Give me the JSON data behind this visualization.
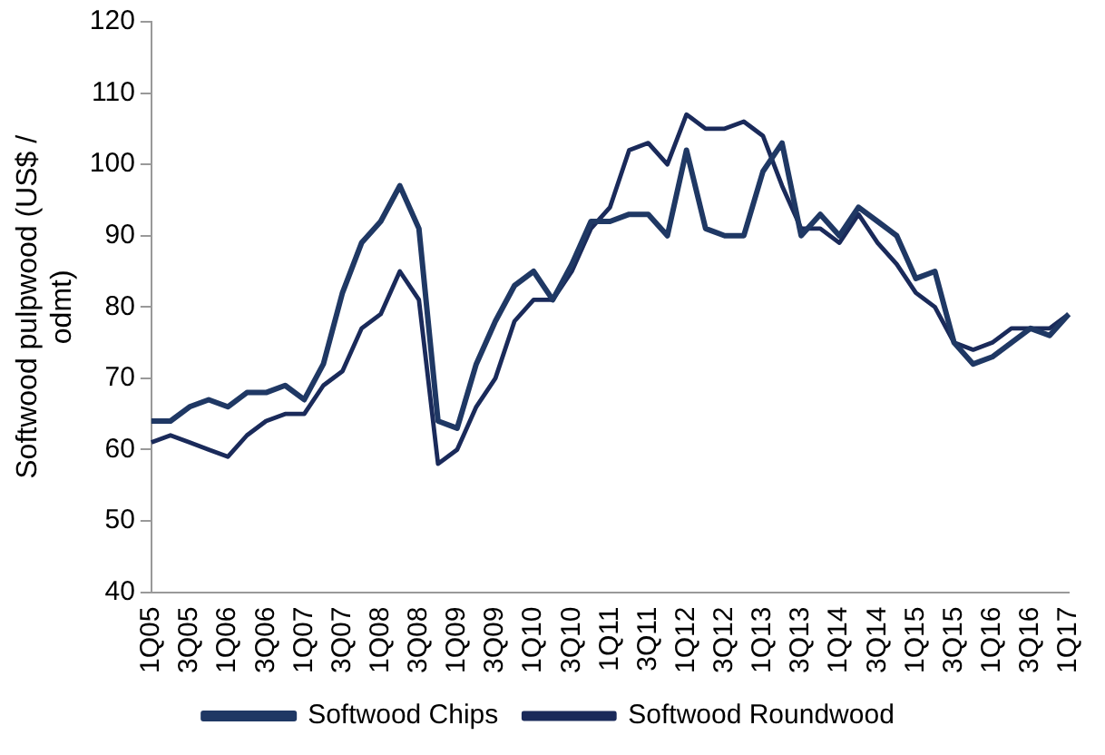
{
  "chart_data": {
    "type": "line",
    "ylabel": "Softwood pulpwood (US$ / odmt)",
    "categories": [
      "1Q05",
      null,
      "3Q05",
      null,
      "1Q06",
      null,
      "3Q06",
      null,
      "1Q07",
      null,
      "3Q07",
      null,
      "1Q08",
      null,
      "3Q08",
      null,
      "1Q09",
      null,
      "3Q09",
      null,
      "1Q10",
      null,
      "3Q10",
      null,
      "1Q11",
      null,
      "3Q11",
      null,
      "1Q12",
      null,
      "3Q12",
      null,
      "1Q13",
      null,
      "3Q13",
      null,
      "1Q14",
      null,
      "3Q14",
      null,
      "1Q15",
      null,
      "3Q15",
      null,
      "1Q16",
      null,
      "3Q16",
      null,
      "1Q17"
    ],
    "series": [
      {
        "name": "Softwood Chips",
        "color": "#1f3864",
        "values": [
          64,
          64,
          66,
          67,
          66,
          68,
          68,
          69,
          67,
          72,
          82,
          89,
          92,
          97,
          91,
          64,
          63,
          72,
          78,
          83,
          85,
          81,
          86,
          92,
          92,
          93,
          93,
          90,
          102,
          91,
          90,
          90,
          99,
          103,
          90,
          93,
          90,
          94,
          92,
          90,
          84,
          85,
          75,
          72,
          73,
          75,
          77,
          76,
          79
        ]
      },
      {
        "name": "Softwood Roundwood",
        "color": "#1a2a5a",
        "values": [
          61,
          62,
          61,
          60,
          59,
          62,
          64,
          65,
          65,
          69,
          71,
          77,
          79,
          85,
          81,
          58,
          60,
          66,
          70,
          78,
          81,
          81,
          85,
          91,
          94,
          102,
          103,
          100,
          107,
          105,
          105,
          106,
          104,
          97,
          91,
          91,
          89,
          93,
          89,
          86,
          82,
          80,
          75,
          74,
          75,
          77,
          77,
          77,
          79
        ]
      }
    ],
    "ylim": [
      40,
      120
    ],
    "yticks": [
      40,
      50,
      60,
      70,
      80,
      90,
      100,
      110,
      120
    ],
    "grid": false,
    "legend": "bottom",
    "marker": "none",
    "line_style": "solid"
  }
}
